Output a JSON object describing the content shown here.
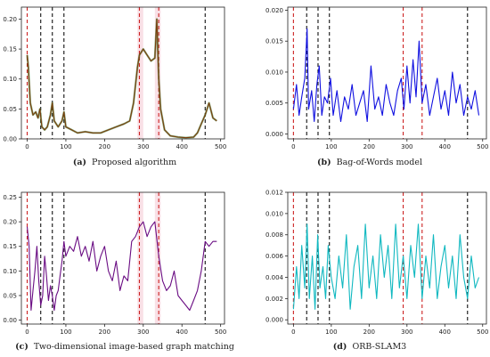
{
  "chart_data": [
    {
      "type": "line",
      "caption_tag": "(a)",
      "caption_text": "Proposed algorithm",
      "line_color": "#7a3b0c",
      "overlay_color": "#3a7a2a",
      "ylim": [
        0,
        0.22
      ],
      "yticks": [
        "0.00",
        "0.05",
        "0.10",
        "0.15",
        "0.20"
      ],
      "ytick_values": [
        0,
        0.05,
        0.1,
        0.15,
        0.2
      ],
      "xlim": [
        -15,
        510
      ],
      "xticks": [
        "0",
        "100",
        "200",
        "300",
        "400",
        "500"
      ],
      "xtick_values": [
        0,
        100,
        200,
        300,
        400,
        500
      ],
      "red_lines": [
        0,
        290,
        340
      ],
      "black_lines": [
        35,
        65,
        95,
        460
      ],
      "shade_ranges": [
        [
          285,
          300
        ],
        [
          330,
          345
        ]
      ],
      "series": [
        {
          "x": [
            0,
            3,
            8,
            15,
            22,
            28,
            33,
            38,
            45,
            52,
            60,
            65,
            70,
            80,
            90,
            95,
            100,
            115,
            130,
            150,
            170,
            190,
            210,
            230,
            250,
            265,
            275,
            285,
            290,
            300,
            310,
            320,
            330,
            335,
            340,
            345,
            355,
            370,
            390,
            410,
            430,
            440,
            450,
            460,
            470,
            480,
            490
          ],
          "values": [
            0.14,
            0.12,
            0.06,
            0.04,
            0.045,
            0.035,
            0.05,
            0.02,
            0.015,
            0.02,
            0.04,
            0.06,
            0.03,
            0.02,
            0.03,
            0.045,
            0.02,
            0.015,
            0.01,
            0.012,
            0.01,
            0.01,
            0.015,
            0.02,
            0.025,
            0.03,
            0.06,
            0.12,
            0.14,
            0.15,
            0.14,
            0.13,
            0.135,
            0.2,
            0.1,
            0.05,
            0.015,
            0.005,
            0.003,
            0.002,
            0.003,
            0.01,
            0.025,
            0.04,
            0.06,
            0.035,
            0.03
          ]
        }
      ]
    },
    {
      "type": "line",
      "caption_tag": "(b)",
      "caption_text": "Bag-of-Words model",
      "line_color": "#1010e0",
      "ylim": [
        -0.0008,
        0.0205
      ],
      "yticks": [
        "0.000",
        "0.005",
        "0.010",
        "0.015",
        "0.020"
      ],
      "ytick_values": [
        0,
        0.005,
        0.01,
        0.015,
        0.02
      ],
      "xlim": [
        -15,
        510
      ],
      "xticks": [
        "0",
        "100",
        "200",
        "300",
        "400",
        "500"
      ],
      "xtick_values": [
        0,
        100,
        200,
        300,
        400,
        500
      ],
      "red_lines": [
        0,
        290,
        340
      ],
      "black_lines": [
        35,
        65,
        95,
        460
      ],
      "shade_ranges": [],
      "series": [
        {
          "x": [
            0,
            8,
            15,
            22,
            30,
            36,
            40,
            48,
            55,
            62,
            68,
            75,
            82,
            90,
            98,
            105,
            115,
            125,
            135,
            145,
            155,
            165,
            175,
            185,
            195,
            205,
            215,
            225,
            235,
            245,
            255,
            265,
            275,
            285,
            292,
            300,
            308,
            316,
            324,
            332,
            340,
            350,
            360,
            370,
            380,
            390,
            400,
            410,
            420,
            430,
            440,
            450,
            460,
            470,
            480,
            490
          ],
          "values": [
            0.004,
            0.008,
            0.003,
            0.006,
            0.009,
            0.017,
            0.004,
            0.007,
            0.002,
            0.008,
            0.011,
            0.003,
            0.006,
            0.005,
            0.009,
            0.003,
            0.007,
            0.002,
            0.006,
            0.004,
            0.008,
            0.003,
            0.005,
            0.007,
            0.002,
            0.011,
            0.004,
            0.006,
            0.003,
            0.008,
            0.005,
            0.003,
            0.007,
            0.009,
            0.004,
            0.011,
            0.005,
            0.012,
            0.006,
            0.015,
            0.005,
            0.008,
            0.003,
            0.006,
            0.009,
            0.004,
            0.007,
            0.003,
            0.01,
            0.005,
            0.008,
            0.003,
            0.006,
            0.004,
            0.007,
            0.003
          ]
        }
      ]
    },
    {
      "type": "line",
      "caption_tag": "(c)",
      "caption_text": "Two-dimensional image-based graph matching",
      "line_color": "#6a0d83",
      "ylim": [
        -0.008,
        0.26
      ],
      "yticks": [
        "0.00",
        "0.05",
        "0.10",
        "0.15",
        "0.20",
        "0.25"
      ],
      "ytick_values": [
        0,
        0.05,
        0.1,
        0.15,
        0.2,
        0.25
      ],
      "xlim": [
        -15,
        510
      ],
      "xticks": [
        "0",
        "100",
        "200",
        "300",
        "400",
        "500"
      ],
      "xtick_values": [
        0,
        100,
        200,
        300,
        400,
        500
      ],
      "red_lines": [
        0,
        290,
        340
      ],
      "black_lines": [
        35,
        65,
        95,
        460
      ],
      "shade_ranges": [
        [
          285,
          300
        ],
        [
          330,
          345
        ]
      ],
      "series": [
        {
          "x": [
            0,
            5,
            10,
            15,
            20,
            25,
            30,
            35,
            40,
            45,
            50,
            55,
            60,
            65,
            70,
            75,
            80,
            85,
            90,
            95,
            100,
            110,
            120,
            130,
            140,
            150,
            160,
            170,
            180,
            190,
            200,
            210,
            220,
            230,
            240,
            250,
            260,
            270,
            280,
            290,
            300,
            310,
            320,
            330,
            340,
            350,
            360,
            370,
            380,
            390,
            400,
            410,
            420,
            430,
            440,
            450,
            460,
            470,
            480,
            490
          ],
          "values": [
            0.19,
            0.15,
            0.02,
            0.06,
            0.1,
            0.15,
            0.08,
            0.03,
            0.05,
            0.13,
            0.09,
            0.04,
            0.07,
            0.05,
            0.02,
            0.05,
            0.06,
            0.09,
            0.12,
            0.16,
            0.13,
            0.15,
            0.14,
            0.17,
            0.13,
            0.15,
            0.12,
            0.16,
            0.1,
            0.13,
            0.15,
            0.1,
            0.08,
            0.12,
            0.06,
            0.09,
            0.08,
            0.16,
            0.17,
            0.19,
            0.2,
            0.17,
            0.19,
            0.2,
            0.13,
            0.08,
            0.06,
            0.07,
            0.1,
            0.05,
            0.04,
            0.03,
            0.02,
            0.04,
            0.06,
            0.1,
            0.16,
            0.15,
            0.16,
            0.16
          ]
        }
      ]
    },
    {
      "type": "line",
      "caption_tag": "(d)",
      "caption_text": "ORB-SLAM3",
      "line_color": "#10b8c0",
      "ylim": [
        -0.0004,
        0.012
      ],
      "yticks": [
        "0.000",
        "0.002",
        "0.004",
        "0.006",
        "0.008",
        "0.010",
        "0.012"
      ],
      "ytick_values": [
        0,
        0.002,
        0.004,
        0.006,
        0.008,
        0.01,
        0.012
      ],
      "xlim": [
        -15,
        510
      ],
      "xticks": [
        "0",
        "100",
        "200",
        "300",
        "400",
        "500"
      ],
      "xtick_values": [
        0,
        100,
        200,
        300,
        400,
        500
      ],
      "red_lines": [
        0,
        290,
        340
      ],
      "black_lines": [
        35,
        65,
        95,
        460
      ],
      "shade_ranges": [],
      "series": [
        {
          "x": [
            0,
            8,
            15,
            22,
            30,
            36,
            42,
            50,
            57,
            64,
            70,
            78,
            85,
            92,
            100,
            110,
            120,
            130,
            140,
            150,
            160,
            170,
            180,
            190,
            200,
            210,
            220,
            230,
            240,
            250,
            260,
            270,
            280,
            290,
            300,
            310,
            320,
            330,
            340,
            350,
            360,
            370,
            380,
            390,
            400,
            410,
            420,
            430,
            440,
            450,
            460,
            470,
            480,
            490
          ],
          "values": [
            0.001,
            0.005,
            0.002,
            0.007,
            0.003,
            0.009,
            0.002,
            0.006,
            0.001,
            0.008,
            0.003,
            0.005,
            0.002,
            0.007,
            0.004,
            0.002,
            0.006,
            0.003,
            0.008,
            0.001,
            0.005,
            0.007,
            0.002,
            0.009,
            0.003,
            0.006,
            0.002,
            0.008,
            0.004,
            0.007,
            0.002,
            0.009,
            0.003,
            0.006,
            0.002,
            0.007,
            0.004,
            0.009,
            0.002,
            0.006,
            0.003,
            0.008,
            0.002,
            0.005,
            0.007,
            0.003,
            0.006,
            0.002,
            0.008,
            0.004,
            0.002,
            0.006,
            0.003,
            0.004
          ]
        }
      ]
    }
  ]
}
